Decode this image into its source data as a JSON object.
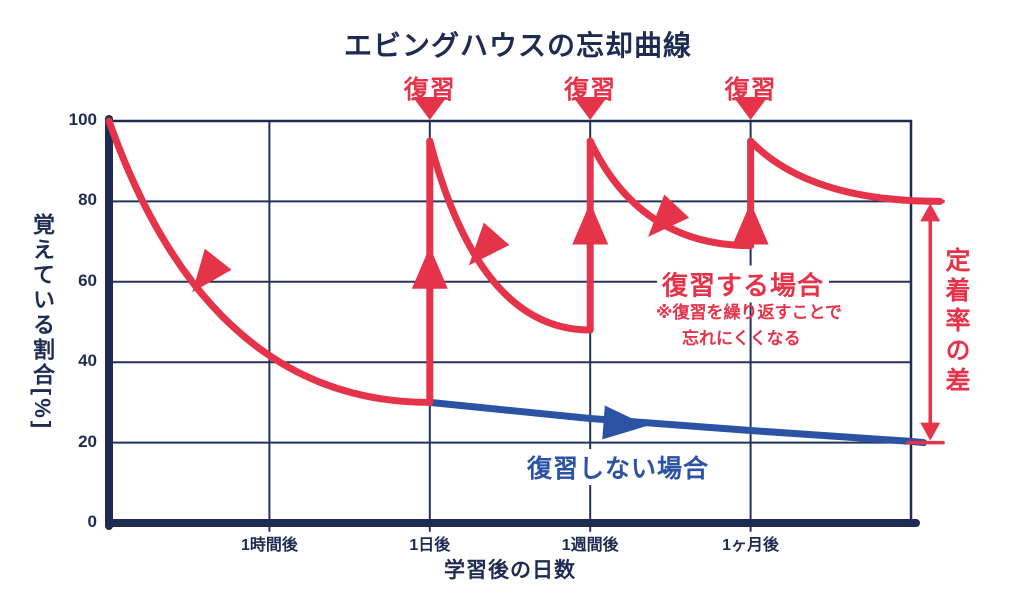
{
  "chart_data": {
    "type": "line",
    "title": "エビングハウスの忘却曲線",
    "xlabel": "学習後の日数",
    "ylabel": "覚えている割合[%]",
    "colors": {
      "navy": "#1e2b52",
      "grid": "#25335c",
      "red": "#e5334a",
      "blue": "#2b52a3",
      "background": "#ffffff"
    },
    "y_axis": {
      "ticks": [
        100,
        80,
        60,
        40,
        20,
        0
      ],
      "range": [
        0,
        100
      ],
      "grid": true
    },
    "x_axis": {
      "ticks": [
        {
          "label": "1時間後",
          "slot": 1
        },
        {
          "label": "1日後",
          "slot": 2
        },
        {
          "label": "1週間後",
          "slot": 3
        },
        {
          "label": "1ヶ月後",
          "slot": 4
        }
      ],
      "slot_range": [
        0,
        5
      ],
      "grid": true
    },
    "review_markers": {
      "label": "復習",
      "slots": [
        2,
        3,
        4
      ]
    },
    "series": [
      {
        "name": "復習する場合",
        "color": "#e5334a",
        "segments": [
          {
            "kind": "decay",
            "from": [
              0,
              100
            ],
            "to": [
              2,
              30
            ]
          },
          {
            "kind": "jump",
            "at": 2,
            "from_pct": 30,
            "to_pct": 95
          },
          {
            "kind": "decay",
            "from": [
              2,
              95
            ],
            "to": [
              3,
              48
            ]
          },
          {
            "kind": "jump",
            "at": 3,
            "from_pct": 48,
            "to_pct": 95
          },
          {
            "kind": "decay",
            "from": [
              3,
              95
            ],
            "to": [
              4,
              69
            ]
          },
          {
            "kind": "jump",
            "at": 4,
            "from_pct": 69,
            "to_pct": 95
          },
          {
            "kind": "decay",
            "from": [
              4,
              95
            ],
            "to": [
              5.18,
              80
            ]
          }
        ]
      },
      {
        "name": "復習しない場合",
        "color": "#2b52a3",
        "points": [
          [
            2,
            30
          ],
          [
            3,
            26
          ],
          [
            4,
            23
          ],
          [
            5,
            20.3
          ],
          [
            5.08,
            20
          ]
        ]
      }
    ],
    "arrows": {
      "decay_arrows": [
        {
          "slot": 0.6,
          "pct": 61.5,
          "dir": [
            -0.62,
            0.79
          ]
        },
        {
          "slot": 2.33,
          "pct": 68.0,
          "dir": [
            -0.66,
            0.75
          ]
        },
        {
          "slot": 3.45,
          "pct": 75.0,
          "dir": [
            -0.68,
            0.73
          ]
        }
      ],
      "jump_arrows": [
        {
          "slot": 2,
          "pct": 63.5
        },
        {
          "slot": 3,
          "pct": 74.5
        },
        {
          "slot": 4,
          "pct": 74.5
        }
      ],
      "blue_arrow": {
        "slot": 3.22,
        "pct": 24.6,
        "dir": [
          0.997,
          0.075
        ]
      }
    },
    "measure": {
      "label": "定着率の差",
      "top_pct": 80,
      "bottom_pct": 20,
      "x_slot": 5.12,
      "cap_slots": [
        4.98,
        5.2
      ]
    },
    "annotations": [
      "※復習を繰り返すことで",
      "忘れにくくなる"
    ]
  }
}
